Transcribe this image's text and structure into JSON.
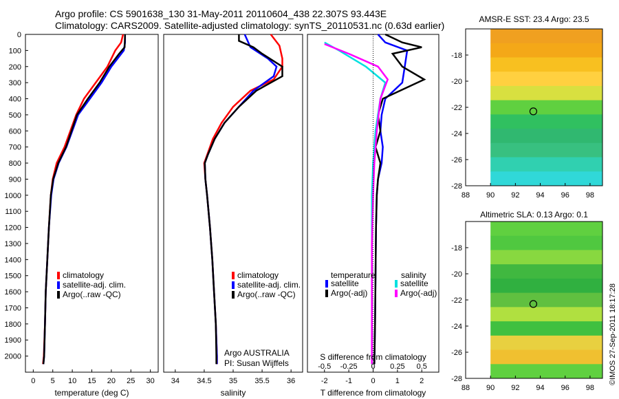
{
  "header": {
    "line1": "Argo profile: CS 5901638_130 31-May-2011 20110604_438 22.307S 93.443E",
    "line2": "Climatology: CARS2009. Satellite-adjusted climatology: synTS_20110531.nc (0.63d earlier)"
  },
  "stamp": "©IMOS 27-Sep-2011 18:17:28",
  "chart_data": [
    {
      "type": "line",
      "name": "temperature-profile",
      "xlabel": "temperature (deg C)",
      "ylabel": "",
      "xlim": [
        -2,
        32
      ],
      "ylim": [
        2100,
        0
      ],
      "xticks": [
        "0",
        "5",
        "10",
        "15",
        "20",
        "25",
        "30"
      ],
      "yticks": [
        "0",
        "100",
        "200",
        "300",
        "400",
        "500",
        "600",
        "700",
        "800",
        "900",
        "1000",
        "1100",
        "1200",
        "1300",
        "1400",
        "1500",
        "1600",
        "1700",
        "1800",
        "1900",
        "2000"
      ],
      "legend": [
        "climatology",
        "satellite-adj. clim.",
        "Argo(..raw -QC)"
      ],
      "colors": {
        "climatology": "#ff0000",
        "satellite": "#0000ff",
        "argo": "#000000"
      },
      "series": [
        {
          "name": "climatology",
          "points": [
            [
              23,
              0
            ],
            [
              22.5,
              50
            ],
            [
              21,
              100
            ],
            [
              19,
              200
            ],
            [
              16,
              300
            ],
            [
              13,
              400
            ],
            [
              11,
              500
            ],
            [
              9.5,
              600
            ],
            [
              8,
              700
            ],
            [
              6,
              800
            ],
            [
              5,
              900
            ],
            [
              4.5,
              1000
            ],
            [
              4,
              1200
            ],
            [
              3.6,
              1400
            ],
            [
              3.2,
              1600
            ],
            [
              3,
              1800
            ],
            [
              2.7,
              2000
            ],
            [
              2.5,
              2050
            ]
          ]
        },
        {
          "name": "satellite-adj. clim.",
          "points": [
            [
              23.5,
              0
            ],
            [
              23.5,
              50
            ],
            [
              23.2,
              100
            ],
            [
              20,
              200
            ],
            [
              17.5,
              300
            ],
            [
              14.5,
              400
            ],
            [
              11.5,
              500
            ],
            [
              10,
              600
            ],
            [
              8.5,
              700
            ],
            [
              6.5,
              800
            ],
            [
              5.2,
              900
            ],
            [
              4.6,
              1000
            ],
            [
              4,
              1200
            ],
            [
              3.6,
              1400
            ],
            [
              3.2,
              1600
            ],
            [
              3,
              1800
            ],
            [
              2.8,
              2000
            ],
            [
              2.6,
              2050
            ]
          ]
        },
        {
          "name": "Argo(..raw -QC)",
          "points": [
            [
              23.5,
              0
            ],
            [
              23.4,
              80
            ],
            [
              22,
              120
            ],
            [
              19.5,
              200
            ],
            [
              17,
              300
            ],
            [
              14,
              400
            ],
            [
              11.2,
              500
            ],
            [
              9.8,
              600
            ],
            [
              8.4,
              700
            ],
            [
              6.4,
              800
            ],
            [
              5.1,
              900
            ],
            [
              4.5,
              1000
            ],
            [
              4,
              1200
            ],
            [
              3.6,
              1400
            ],
            [
              3.2,
              1600
            ],
            [
              3,
              1800
            ],
            [
              2.8,
              2000
            ],
            [
              2.6,
              2050
            ]
          ]
        }
      ]
    },
    {
      "type": "line",
      "name": "salinity-profile",
      "xlabel": "salinity",
      "xlim": [
        33.8,
        36.2
      ],
      "ylim": [
        2100,
        0
      ],
      "xticks": [
        "34",
        "34.5",
        "35",
        "35.5",
        "36"
      ],
      "legend": [
        "climatology",
        "satellite-adj. clim.",
        "Argo(..raw -QC)"
      ],
      "note": [
        "Argo AUSTRALIA",
        "PI: Susan Wijffels"
      ],
      "series": [
        {
          "name": "climatology",
          "points": [
            [
              35.65,
              0
            ],
            [
              35.8,
              70
            ],
            [
              35.85,
              150
            ],
            [
              35.85,
              200
            ],
            [
              35.7,
              280
            ],
            [
              35.3,
              350
            ],
            [
              35.0,
              450
            ],
            [
              34.8,
              550
            ],
            [
              34.65,
              650
            ],
            [
              34.55,
              750
            ],
            [
              34.5,
              800
            ],
            [
              34.52,
              900
            ],
            [
              34.55,
              1000
            ],
            [
              34.6,
              1200
            ],
            [
              34.64,
              1400
            ],
            [
              34.67,
              1600
            ],
            [
              34.7,
              1800
            ],
            [
              34.72,
              2000
            ],
            [
              34.72,
              2050
            ]
          ]
        },
        {
          "name": "satellite-adj. clim.",
          "points": [
            [
              35.2,
              0
            ],
            [
              35.3,
              80
            ],
            [
              35.6,
              150
            ],
            [
              35.75,
              200
            ],
            [
              35.7,
              260
            ],
            [
              35.35,
              350
            ],
            [
              35.1,
              450
            ],
            [
              34.85,
              550
            ],
            [
              34.68,
              650
            ],
            [
              34.56,
              750
            ],
            [
              34.51,
              800
            ],
            [
              34.52,
              900
            ],
            [
              34.55,
              1000
            ],
            [
              34.6,
              1200
            ],
            [
              34.64,
              1400
            ],
            [
              34.67,
              1600
            ],
            [
              34.7,
              1800
            ],
            [
              34.72,
              2000
            ],
            [
              34.72,
              2050
            ]
          ]
        },
        {
          "name": "Argo(..raw -QC)",
          "points": [
            [
              35.1,
              0
            ],
            [
              35.1,
              40
            ],
            [
              35.35,
              80
            ],
            [
              35.5,
              120
            ],
            [
              35.85,
              200
            ],
            [
              35.85,
              260
            ],
            [
              35.4,
              350
            ],
            [
              35.1,
              450
            ],
            [
              34.85,
              550
            ],
            [
              34.68,
              650
            ],
            [
              34.56,
              750
            ],
            [
              34.51,
              800
            ],
            [
              34.52,
              900
            ],
            [
              34.55,
              1000
            ],
            [
              34.6,
              1200
            ],
            [
              34.64,
              1400
            ],
            [
              34.67,
              1600
            ],
            [
              34.7,
              1800
            ],
            [
              34.71,
              2000
            ],
            [
              34.71,
              2050
            ]
          ]
        }
      ]
    },
    {
      "type": "line",
      "name": "difference-from-climatology",
      "xlabel": "T difference from climatology",
      "xlabel_top": "S difference from climatology",
      "xlim": [
        -2.7,
        2.7
      ],
      "ylim": [
        2100,
        0
      ],
      "xticks": [
        "-2",
        "-1",
        "0",
        "1",
        "2"
      ],
      "xticks_top": [
        "-0.5",
        "-0.25",
        "0",
        "0.25",
        "0.5"
      ],
      "legend_titles": [
        "temperature",
        "salinity"
      ],
      "legend": [
        "satellite",
        "Argo(-adj)",
        "satellite",
        "Argo(-adj)"
      ],
      "series": [
        {
          "name": "temperature satellite",
          "points": [
            [
              0.2,
              0
            ],
            [
              0.5,
              50
            ],
            [
              1.4,
              100
            ],
            [
              1.3,
              200
            ],
            [
              1.2,
              300
            ],
            [
              0.5,
              400
            ],
            [
              0.35,
              500
            ],
            [
              0.3,
              600
            ],
            [
              0.4,
              700
            ],
            [
              0.35,
              800
            ],
            [
              0.2,
              900
            ],
            [
              0.15,
              1000
            ],
            [
              0.12,
              1200
            ],
            [
              0.1,
              1500
            ],
            [
              0.08,
              1800
            ],
            [
              0.05,
              2050
            ]
          ]
        },
        {
          "name": "temperature Argo(-adj)",
          "points": [
            [
              0.5,
              0
            ],
            [
              1.2,
              50
            ],
            [
              2.0,
              80
            ],
            [
              0.8,
              120
            ],
            [
              1.2,
              200
            ],
            [
              2.1,
              280
            ],
            [
              0.4,
              400
            ],
            [
              0.2,
              500
            ],
            [
              0.3,
              600
            ],
            [
              0.1,
              700
            ],
            [
              0.3,
              800
            ],
            [
              0.2,
              900
            ],
            [
              0.15,
              1000
            ],
            [
              0.12,
              1200
            ],
            [
              0.1,
              1500
            ],
            [
              0.08,
              1800
            ],
            [
              0.05,
              2050
            ]
          ]
        },
        {
          "name": "salinity satellite",
          "points": [
            [
              -2.0,
              50
            ],
            [
              -1.4,
              100
            ],
            [
              -0.3,
              200
            ],
            [
              0.5,
              300
            ],
            [
              0.3,
              400
            ],
            [
              0.1,
              600
            ],
            [
              0.0,
              800
            ],
            [
              -0.05,
              1000
            ],
            [
              -0.05,
              1300
            ],
            [
              -0.05,
              1600
            ],
            [
              -0.05,
              2050
            ]
          ]
        },
        {
          "name": "salinity Argo(-adj)",
          "points": [
            [
              -2.0,
              60
            ],
            [
              -1.0,
              120
            ],
            [
              0.2,
              200
            ],
            [
              0.6,
              280
            ],
            [
              0.3,
              400
            ],
            [
              0.15,
              600
            ],
            [
              0.05,
              800
            ],
            [
              0.0,
              1000
            ],
            [
              -0.05,
              1300
            ],
            [
              -0.05,
              1600
            ],
            [
              -0.05,
              2050
            ]
          ]
        }
      ]
    },
    {
      "type": "heatmap",
      "name": "amsr-e-sst",
      "title": "AMSR-E SST: 23.4  Argo: 23.5",
      "xlim": [
        88,
        99
      ],
      "ylim": [
        -28,
        -16
      ],
      "xticks": [
        "88",
        "90",
        "92",
        "94",
        "96",
        "98"
      ],
      "yticks": [
        "-18",
        "-20",
        "-22",
        "-24",
        "-26",
        "-28"
      ],
      "marker": [
        93.44,
        -22.31
      ],
      "rows_top_to_bottom": [
        "#f0a020",
        "#f4a818",
        "#f8c020",
        "#ffd040",
        "#d8e040",
        "#60d040",
        "#30c060",
        "#30b870",
        "#38c080",
        "#30d0b0",
        "#30d8d8"
      ]
    },
    {
      "type": "heatmap",
      "name": "altimetric-sla",
      "title": "Altimetric SLA: 0.13  Argo: 0.1",
      "xlim": [
        88,
        99
      ],
      "ylim": [
        -28,
        -16
      ],
      "xticks": [
        "88",
        "90",
        "92",
        "94",
        "96",
        "98"
      ],
      "yticks": [
        "-18",
        "-20",
        "-22",
        "-24",
        "-26",
        "-28"
      ],
      "marker": [
        93.44,
        -22.31
      ],
      "rows_top_to_bottom": [
        "#60d040",
        "#50c840",
        "#88d840",
        "#40b840",
        "#30b040",
        "#60c040",
        "#b0e040",
        "#40c040",
        "#e8d040",
        "#f0c030",
        "#60d040"
      ]
    }
  ]
}
